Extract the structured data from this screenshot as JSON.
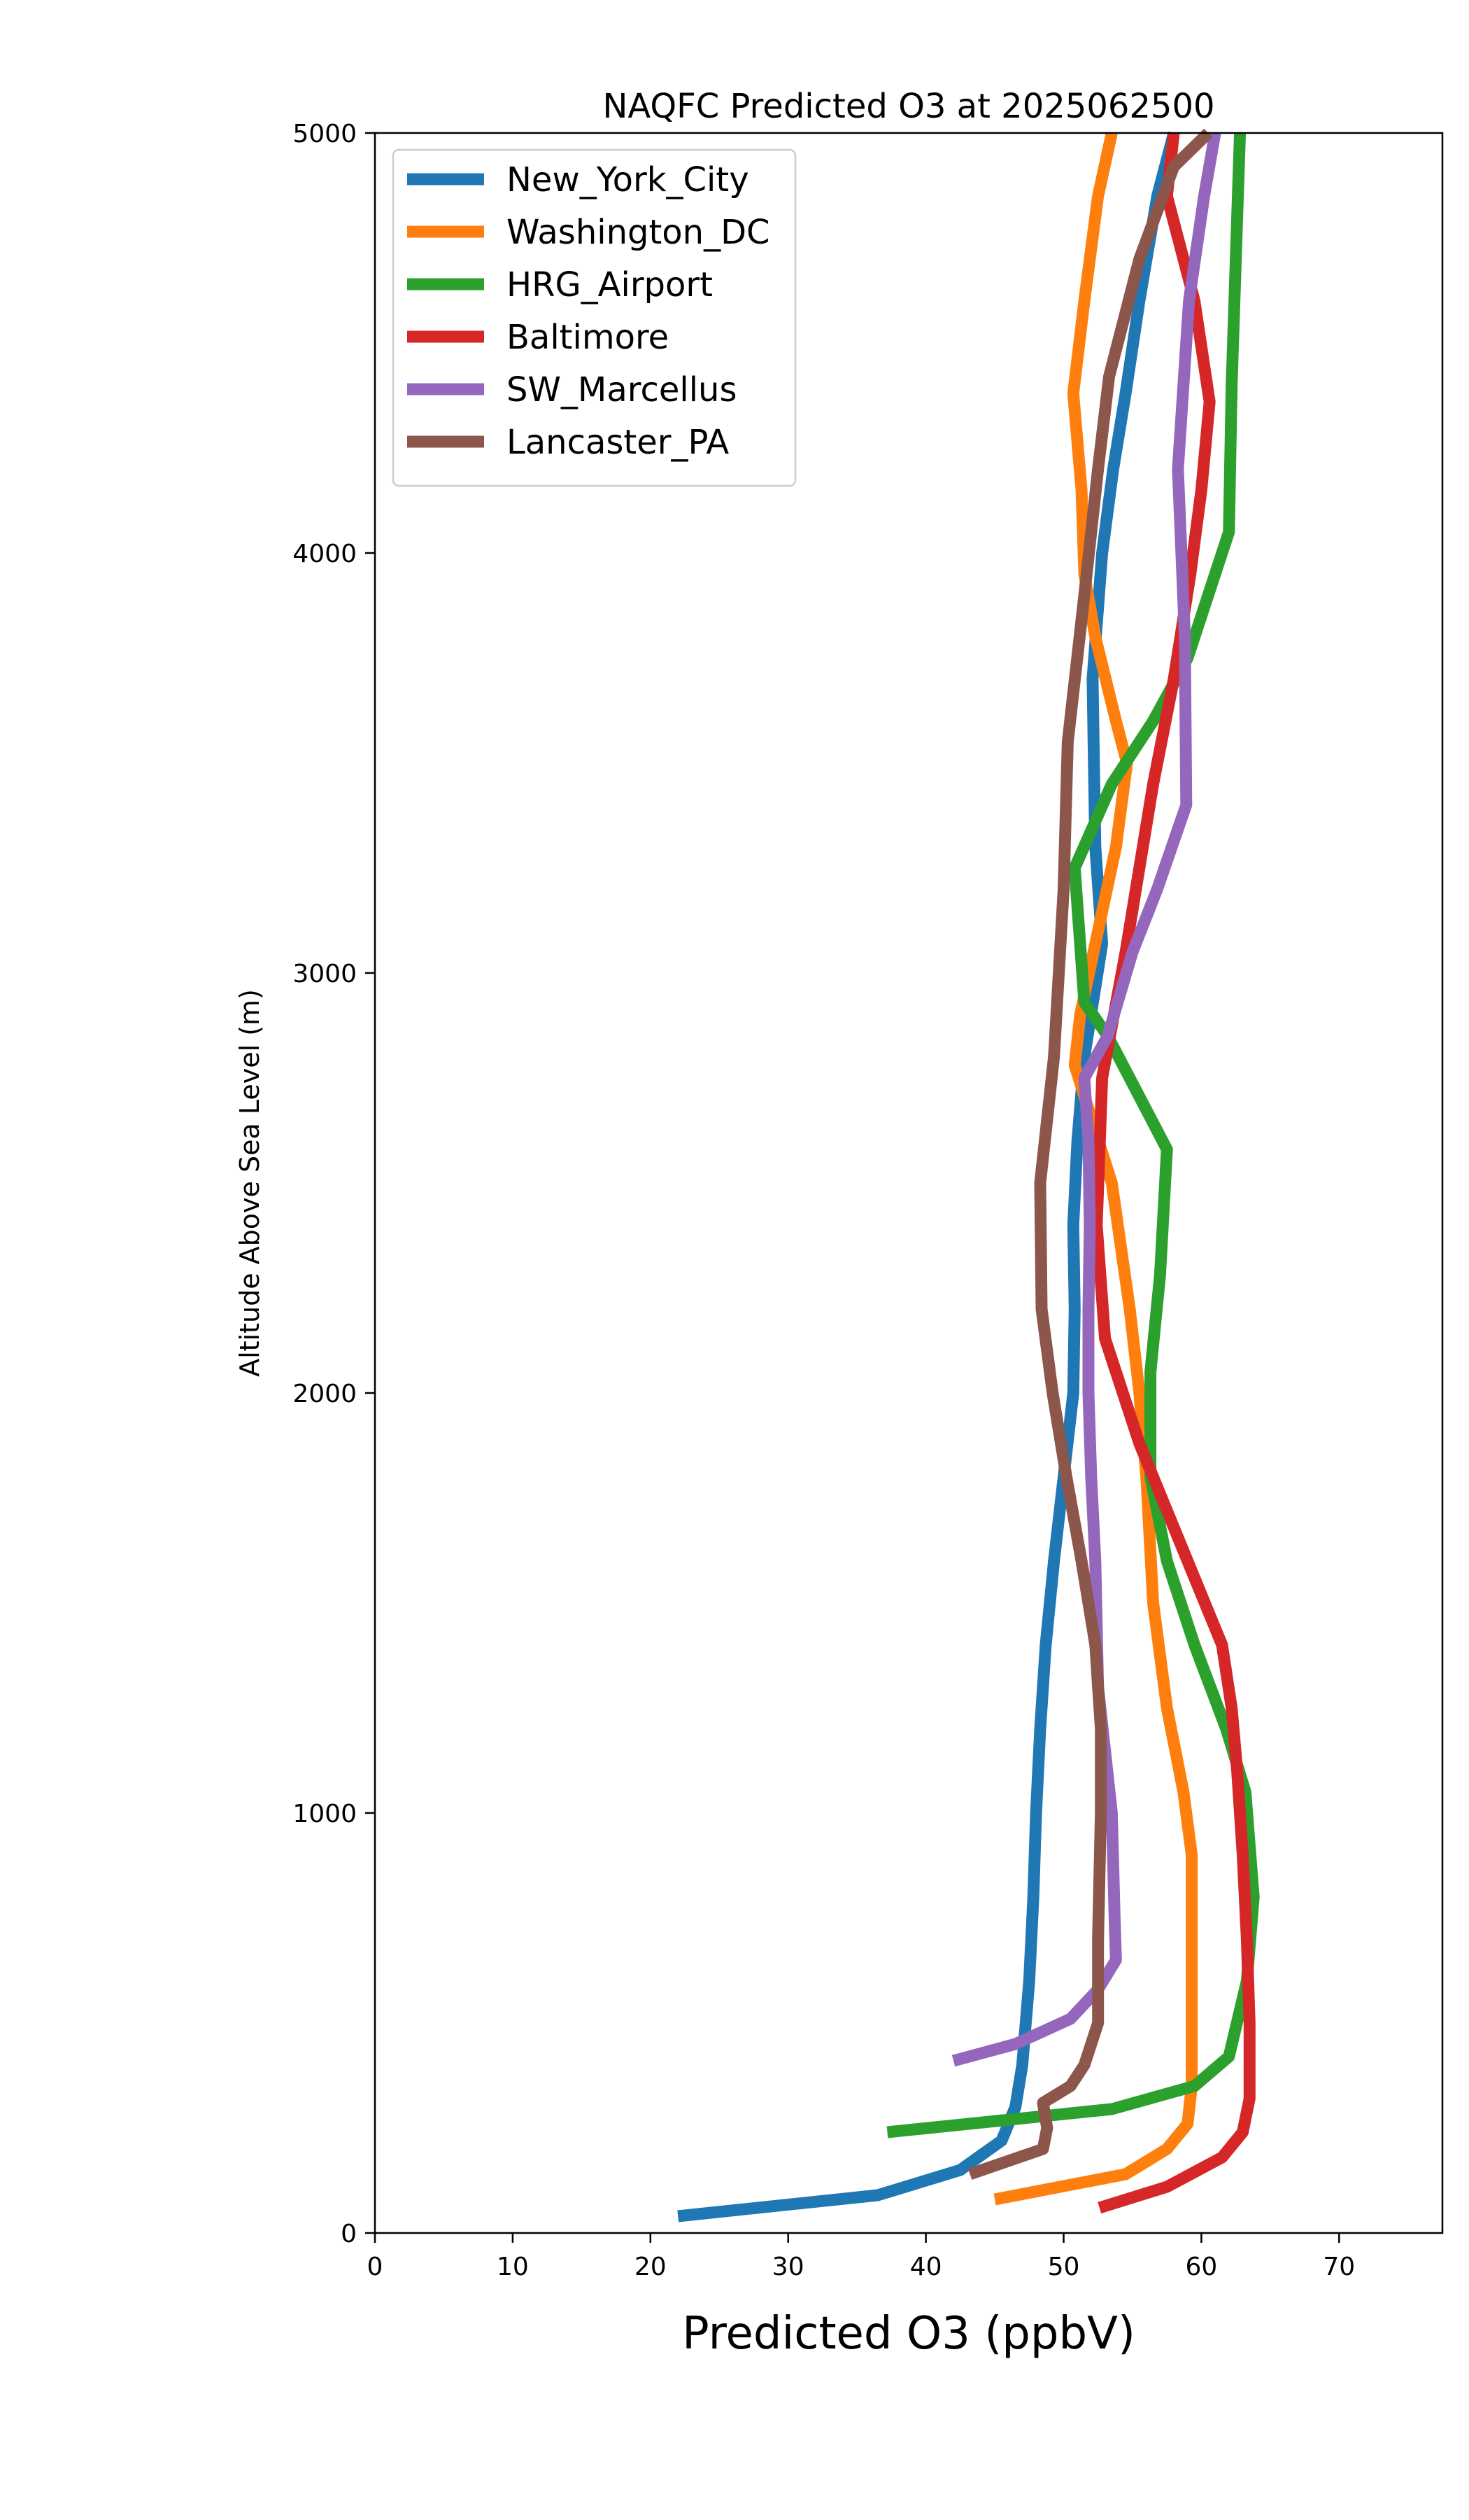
{
  "chart_data": {
    "type": "line",
    "title": "NAQFC Predicted O3 at 2025062500",
    "xlabel": "Predicted O3 (ppbV)",
    "ylabel": "Altitude Above Sea Level (m)",
    "xlim": [
      0,
      77.5
    ],
    "ylim": [
      0,
      5000
    ],
    "xticks": [
      0,
      10,
      20,
      30,
      40,
      50,
      60,
      70
    ],
    "yticks": [
      0,
      1000,
      2000,
      3000,
      4000,
      5000
    ],
    "grid": false,
    "legend_position": "top-left",
    "series": [
      {
        "name": "New_York_City",
        "color": "#1f77b4",
        "points": [
          [
            22,
            40
          ],
          [
            36.5,
            90
          ],
          [
            42.5,
            150
          ],
          [
            45.5,
            220
          ],
          [
            46.5,
            300
          ],
          [
            47,
            400
          ],
          [
            47.5,
            600
          ],
          [
            47.8,
            800
          ],
          [
            48,
            1000
          ],
          [
            48.3,
            1200
          ],
          [
            48.7,
            1400
          ],
          [
            49.3,
            1600
          ],
          [
            50,
            1800
          ],
          [
            50.7,
            2000
          ],
          [
            50.8,
            2200
          ],
          [
            50.7,
            2400
          ],
          [
            51,
            2600
          ],
          [
            51.5,
            2800
          ],
          [
            52.8,
            3070
          ],
          [
            52.3,
            3300
          ],
          [
            52.2,
            3500
          ],
          [
            52.1,
            3700
          ],
          [
            52.8,
            4000
          ],
          [
            53.6,
            4200
          ],
          [
            54.5,
            4380
          ],
          [
            55.5,
            4600
          ],
          [
            56.8,
            4850
          ],
          [
            58,
            5000
          ]
        ]
      },
      {
        "name": "Washington_DC",
        "color": "#ff7f0e",
        "points": [
          [
            45,
            80
          ],
          [
            54.5,
            140
          ],
          [
            57.5,
            200
          ],
          [
            59,
            260
          ],
          [
            59.3,
            350
          ],
          [
            59.3,
            600
          ],
          [
            59.3,
            900
          ],
          [
            58.7,
            1050
          ],
          [
            57.5,
            1250
          ],
          [
            56.5,
            1500
          ],
          [
            56,
            1800
          ],
          [
            55.5,
            2000
          ],
          [
            54.8,
            2200
          ],
          [
            53.5,
            2500
          ],
          [
            50.8,
            2780
          ],
          [
            51.2,
            2900
          ],
          [
            52.5,
            3100
          ],
          [
            53.8,
            3300
          ],
          [
            54.6,
            3500
          ],
          [
            53.8,
            3600
          ],
          [
            52.3,
            3800
          ],
          [
            51.5,
            3950
          ],
          [
            51.3,
            4150
          ],
          [
            50.7,
            4380
          ],
          [
            51.5,
            4600
          ],
          [
            52.5,
            4850
          ],
          [
            53.5,
            5000
          ]
        ]
      },
      {
        "name": "HRG_Airport",
        "color": "#2ca02c",
        "points": [
          [
            37.2,
            240
          ],
          [
            53.5,
            295
          ],
          [
            59.5,
            350
          ],
          [
            62,
            420
          ],
          [
            63.3,
            600
          ],
          [
            63.8,
            800
          ],
          [
            63.2,
            1050
          ],
          [
            61.8,
            1200
          ],
          [
            59.5,
            1400
          ],
          [
            57.5,
            1600
          ],
          [
            56.3,
            1800
          ],
          [
            56.3,
            2050
          ],
          [
            57,
            2280
          ],
          [
            57.5,
            2580
          ],
          [
            53.2,
            2850
          ],
          [
            51.5,
            2930
          ],
          [
            50.8,
            3250
          ],
          [
            53.5,
            3450
          ],
          [
            56.5,
            3600
          ],
          [
            59,
            3750
          ],
          [
            62,
            4050
          ],
          [
            62.2,
            4400
          ],
          [
            62.6,
            4800
          ],
          [
            62.8,
            5000
          ]
        ]
      },
      {
        "name": "Baltimore",
        "color": "#d62728",
        "points": [
          [
            52.6,
            60
          ],
          [
            57.5,
            110
          ],
          [
            61.5,
            180
          ],
          [
            63,
            240
          ],
          [
            63.5,
            320
          ],
          [
            63.5,
            500
          ],
          [
            63.3,
            700
          ],
          [
            63,
            900
          ],
          [
            62.6,
            1100
          ],
          [
            62.2,
            1250
          ],
          [
            61.5,
            1400
          ],
          [
            59,
            1600
          ],
          [
            55.5,
            1880
          ],
          [
            53,
            2130
          ],
          [
            52.4,
            2400
          ],
          [
            52.8,
            2750
          ],
          [
            54.5,
            3050
          ],
          [
            55.5,
            3250
          ],
          [
            56.5,
            3450
          ],
          [
            58,
            3700
          ],
          [
            59.2,
            3950
          ],
          [
            60,
            4150
          ],
          [
            60.6,
            4360
          ],
          [
            59.5,
            4600
          ],
          [
            57.5,
            4850
          ],
          [
            58,
            5000
          ]
        ]
      },
      {
        "name": "SW_Marcellus",
        "color": "#9467bd",
        "points": [
          [
            42,
            410
          ],
          [
            46.5,
            450
          ],
          [
            50.5,
            510
          ],
          [
            52.5,
            580
          ],
          [
            53.8,
            650
          ],
          [
            53.7,
            750
          ],
          [
            53.5,
            1000
          ],
          [
            53,
            1150
          ],
          [
            52.5,
            1300
          ],
          [
            52.3,
            1600
          ],
          [
            52,
            1800
          ],
          [
            51.8,
            2000
          ],
          [
            51.8,
            2200
          ],
          [
            51.9,
            2400
          ],
          [
            51.8,
            2600
          ],
          [
            51.5,
            2750
          ],
          [
            53.2,
            2850
          ],
          [
            55,
            3050
          ],
          [
            56.8,
            3200
          ],
          [
            58.9,
            3400
          ],
          [
            58.8,
            3800
          ],
          [
            58.3,
            4200
          ],
          [
            59.1,
            4600
          ],
          [
            60.2,
            4850
          ],
          [
            61,
            5000
          ]
        ]
      },
      {
        "name": "Lancaster_PA",
        "color": "#8c564b",
        "points": [
          [
            43.2,
            140
          ],
          [
            48.5,
            200
          ],
          [
            48.8,
            250
          ],
          [
            48.5,
            310
          ],
          [
            50.5,
            350
          ],
          [
            51.5,
            400
          ],
          [
            52.5,
            500
          ],
          [
            52.5,
            600
          ],
          [
            52.5,
            700
          ],
          [
            52.7,
            1000
          ],
          [
            52.7,
            1200
          ],
          [
            52.3,
            1400
          ],
          [
            51.3,
            1600
          ],
          [
            50.2,
            1800
          ],
          [
            49.2,
            2000
          ],
          [
            48.4,
            2200
          ],
          [
            48.3,
            2500
          ],
          [
            49.3,
            2800
          ],
          [
            50,
            3200
          ],
          [
            50.3,
            3550
          ],
          [
            51.5,
            3900
          ],
          [
            52.5,
            4200
          ],
          [
            53.3,
            4420
          ],
          [
            55.5,
            4700
          ],
          [
            58,
            4920
          ],
          [
            60.5,
            5000
          ]
        ]
      }
    ]
  }
}
